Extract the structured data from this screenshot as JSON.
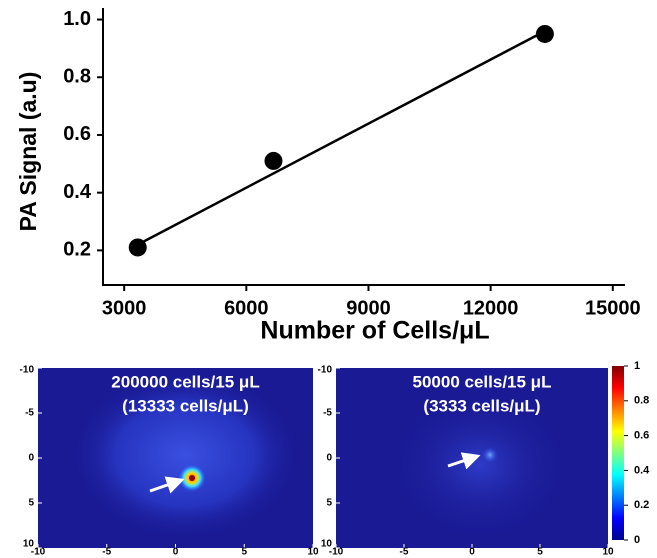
{
  "chart_data": [
    {
      "type": "scatter",
      "xlabel": "Number of Cells/μL",
      "ylabel": "PA Signal (a.u)",
      "x": [
        3333,
        6667,
        13333
      ],
      "values": [
        0.21,
        0.51,
        0.95
      ],
      "color": "#000000",
      "fit": {
        "x": [
          3333,
          13333
        ],
        "y": [
          0.22,
          0.96
        ]
      },
      "xlim": [
        2480,
        15300
      ],
      "ylim": [
        0.08,
        1.04
      ],
      "xticks": [
        3000,
        6000,
        9000,
        12000,
        15000
      ],
      "yticks": [
        {
          "value": 0.2,
          "label": "0.2"
        },
        {
          "value": 0.4,
          "label": "0.4"
        },
        {
          "value": 0.6,
          "label": "0.6"
        },
        {
          "value": 0.8,
          "label": "0.8"
        },
        {
          "value": 1.0,
          "label": "1.0"
        }
      ]
    },
    {
      "type": "heatmap",
      "annotation": [
        "200000 cells/15 μL",
        "(13333 cells/μL)"
      ],
      "xlim": [
        -10,
        10
      ],
      "ylim": [
        -10,
        10
      ],
      "xticks": [
        -10,
        -5,
        0,
        5,
        10
      ],
      "yticks": [
        -10,
        -5,
        0,
        5,
        10
      ]
    },
    {
      "type": "heatmap",
      "annotation": [
        "50000 cells/15 μL",
        "(3333 cells/μL)"
      ],
      "xlim": [
        -10,
        10
      ],
      "ylim": [
        -10,
        10
      ],
      "xticks": [
        -10,
        -5,
        0,
        5,
        10
      ],
      "yticks": [
        -10,
        -5,
        0,
        5,
        10
      ]
    },
    {
      "type": "colorbar",
      "ylim": [
        0,
        1
      ],
      "yticks": [
        0,
        0.2,
        0.4,
        0.6,
        0.8,
        1
      ]
    }
  ]
}
